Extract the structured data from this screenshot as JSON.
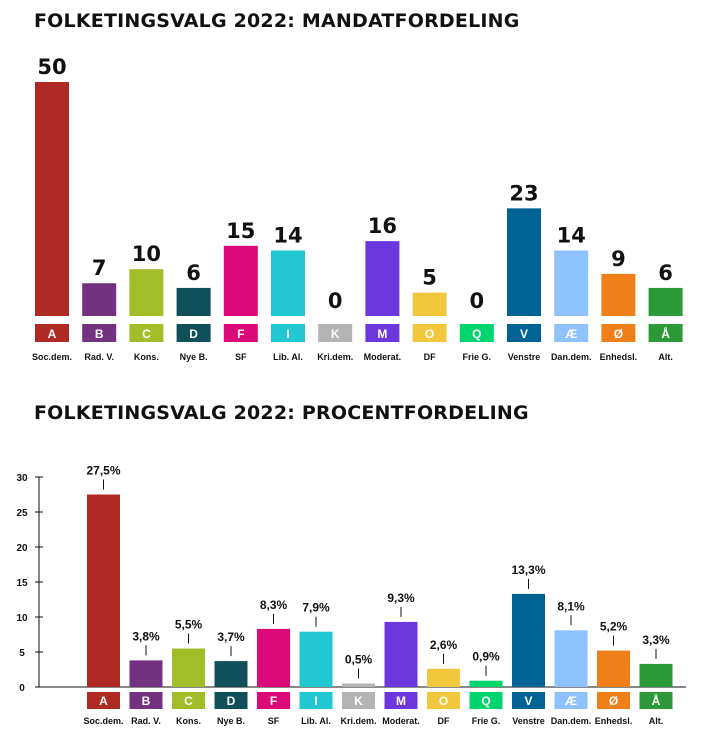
{
  "chart_data": [
    {
      "type": "bar",
      "title": "FOLKETINGSVALG 2022: MANDATFORDELING",
      "letters": [
        "A",
        "B",
        "C",
        "D",
        "F",
        "I",
        "K",
        "M",
        "O",
        "Q",
        "V",
        "Æ",
        "Ø",
        "Å"
      ],
      "categories": [
        "Soc.dem.",
        "Rad. V.",
        "Kons.",
        "Nye B.",
        "SF",
        "Lib. Al.",
        "Kri.dem.",
        "Moderat.",
        "DF",
        "Frie G.",
        "Venstre",
        "Dan.dem.",
        "Enhedsl.",
        "Alt."
      ],
      "values": [
        50,
        7,
        10,
        6,
        15,
        14,
        0,
        16,
        5,
        0,
        23,
        14,
        9,
        6
      ],
      "value_labels": [
        "50",
        "7",
        "10",
        "6",
        "15",
        "14",
        "0",
        "16",
        "5",
        "0",
        "23",
        "14",
        "9",
        "6"
      ],
      "ylim": [
        0,
        50
      ],
      "grid": false,
      "colors": [
        "#b02a25",
        "#733280",
        "#a1bd2a",
        "#0f505a",
        "#dc0a78",
        "#23c7d2",
        "#b4b4b4",
        "#6c38de",
        "#f1c73e",
        "#00d56d",
        "#006395",
        "#8ec2fc",
        "#ef7f19",
        "#2c9939"
      ]
    },
    {
      "type": "bar",
      "title": "FOLKETINGSVALG 2022: PROCENTFORDELING",
      "letters": [
        "A",
        "B",
        "C",
        "D",
        "F",
        "I",
        "K",
        "M",
        "O",
        "Q",
        "V",
        "Æ",
        "Ø",
        "Å"
      ],
      "categories": [
        "Soc.dem.",
        "Rad. V.",
        "Kons.",
        "Nye B.",
        "SF",
        "Lib. Al.",
        "Kri.dem.",
        "Moderat.",
        "DF",
        "Frie G.",
        "Venstre",
        "Dan.dem.",
        "Enhedsl.",
        "Alt."
      ],
      "values": [
        27.5,
        3.8,
        5.5,
        3.7,
        8.3,
        7.9,
        0.5,
        9.3,
        2.6,
        0.9,
        13.3,
        8.1,
        5.2,
        3.3
      ],
      "value_labels": [
        "27,5%",
        "3,8%",
        "5,5%",
        "3,7%",
        "8,3%",
        "7,9%",
        "0,5%",
        "9,3%",
        "2,6%",
        "0,9%",
        "13,3%",
        "8,1%",
        "5,2%",
        "3,3%"
      ],
      "ylim": [
        0,
        30
      ],
      "yticks": [
        "0",
        "5",
        "10",
        "15",
        "20",
        "25",
        "30"
      ],
      "grid": false,
      "colors": [
        "#b02a25",
        "#733280",
        "#a1bd2a",
        "#0f505a",
        "#dc0a78",
        "#23c7d2",
        "#b4b4b4",
        "#6c38de",
        "#f1c73e",
        "#00d56d",
        "#006395",
        "#8ec2fc",
        "#ef7f19",
        "#2c9939"
      ]
    }
  ]
}
